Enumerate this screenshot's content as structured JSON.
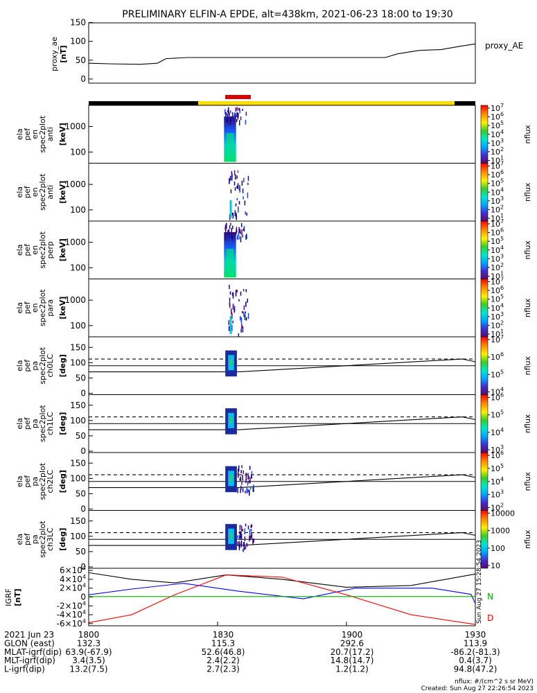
{
  "title": "PRELIMINARY ELFIN-A EPDE, alt=438km, 2021-06-23 18:00 to 19:30",
  "colors": {
    "axis": "#000000",
    "bx": "#000000",
    "by": "#0000ff",
    "bz": "#ff0000",
    "ng": "#00aa00",
    "bar_black": "#000000",
    "bar_yellow": "#ffdd00",
    "bar_red": "#dd0000"
  },
  "icons": {
    "colorbar": "rainbow-colorbar"
  },
  "top_panel": {
    "label": "proxy_ae",
    "unit": "[nT]",
    "legend": "proxy_AE",
    "yticks": [
      "0",
      "50",
      "100",
      "150"
    ]
  },
  "panels": [
    {
      "id": "ant",
      "lines": [
        "ela",
        "pef",
        "en",
        "spec2plot",
        "anti"
      ],
      "unit": "[keV]",
      "yticks": [
        "100",
        "1000"
      ],
      "colorbar_label": "nflux",
      "cb_ticks": [
        "10^1",
        "10^2",
        "10^3",
        "10^4",
        "10^5",
        "10^6",
        "10^7"
      ]
    },
    {
      "id": "anti2",
      "lines": [
        "ela",
        "pef",
        "en",
        "spec2plot",
        "anti"
      ],
      "unit": "[keV]",
      "yticks": [
        "100",
        "1000"
      ],
      "colorbar_label": "nflux",
      "cb_ticks": [
        "10^1",
        "10^2",
        "10^3",
        "10^4",
        "10^5",
        "10^6",
        "10^7"
      ]
    },
    {
      "id": "perp",
      "lines": [
        "ela",
        "pef",
        "en",
        "spec2plot",
        "perp"
      ],
      "unit": "[keV]",
      "yticks": [
        "100",
        "1000"
      ],
      "colorbar_label": "nflux",
      "cb_ticks": [
        "10^1",
        "10^2",
        "10^3",
        "10^4",
        "10^5",
        "10^6",
        "10^7"
      ]
    },
    {
      "id": "para",
      "lines": [
        "ela",
        "pef",
        "en",
        "spec2plot",
        "para"
      ],
      "unit": "[keV]",
      "yticks": [
        "100",
        "1000"
      ],
      "colorbar_label": "nflux",
      "cb_ticks": [
        "10^1",
        "10^2",
        "10^3",
        "10^4",
        "10^5",
        "10^6",
        "10^7"
      ]
    },
    {
      "id": "ch0",
      "lines": [
        "ela",
        "pef",
        "pa",
        "spec2plot",
        "ch0LC"
      ],
      "unit": "[deg]",
      "yticks": [
        "0",
        "50",
        "100",
        "150"
      ],
      "colorbar_label": "nflux",
      "cb_ticks": [
        "10^4",
        "10^5",
        "10^6",
        "10^7"
      ]
    },
    {
      "id": "ch1",
      "lines": [
        "ela",
        "pef",
        "pa",
        "spec2plot",
        "ch1LC"
      ],
      "unit": "[deg]",
      "yticks": [
        "0",
        "50",
        "100",
        "150"
      ],
      "colorbar_label": "nflux",
      "cb_ticks": [
        "10^3",
        "10^4",
        "10^5",
        "10^6"
      ]
    },
    {
      "id": "ch2",
      "lines": [
        "ela",
        "pef",
        "pa",
        "spec2plot",
        "ch2LC"
      ],
      "unit": "[deg]",
      "yticks": [
        "0",
        "50",
        "100",
        "150"
      ],
      "colorbar_label": "nflux",
      "cb_ticks": [
        "10^2",
        "10^3",
        "10^4",
        "10^5",
        "10^6"
      ]
    },
    {
      "id": "ch3",
      "lines": [
        "ela",
        "pef",
        "pa",
        "spec2plot",
        "ch3LC"
      ],
      "unit": "[deg]",
      "yticks": [
        "0",
        "50",
        "100",
        "150"
      ],
      "colorbar_label": "nflux",
      "cb_ticks": [
        "10",
        "100",
        "1000",
        "10000"
      ]
    }
  ],
  "bottom_panel": {
    "label": "IGRF",
    "unit": "[nT]",
    "yticks": [
      "-6×10^4",
      "-4×10^4",
      "-2×10^4",
      "0",
      "2×10^4",
      "4×10^4",
      "6×10^4"
    ],
    "legend_letters": [
      "N",
      "D"
    ],
    "stamp": "Sun Aug 27 15:28:54 2023"
  },
  "x_axis": {
    "ticks": [
      "1800",
      "1830",
      "1900",
      "1930"
    ]
  },
  "footer": {
    "rows": [
      {
        "label": "2021 Jun 23",
        "values": [
          "1800",
          "1830",
          "1900",
          "1930"
        ]
      },
      {
        "label": "GLON (east)",
        "values": [
          "132.3",
          "115.3",
          "292.6",
          "113.9"
        ]
      },
      {
        "label": "MLAT-igrf(dip)",
        "values": [
          "63.9(-67.9)",
          "52.6(46.8)",
          "20.7(17.2)",
          "-86.2(-81.3)"
        ]
      },
      {
        "label": "MLT-igrf(dip)",
        "values": [
          "3.4(3.5)",
          "2.4(2.2)",
          "14.8(14.7)",
          "0.4(3.7)"
        ]
      },
      {
        "label": "L-igrf(dip)",
        "values": [
          "13.2(7.5)",
          "2.7(2.3)",
          "1.2(1.2)",
          "94.8(47.2)"
        ]
      }
    ],
    "units_note": "nflux: #/(cm^2 s sr MeV)",
    "created": "Created: Sun Aug 27 22:26:54 2023"
  },
  "chart_data": {
    "type": "line",
    "title": "PRELIMINARY ELFIN-A EPDE, alt=438km, 2021-06-23 18:00 to 19:30",
    "x_range_minutes": [
      0,
      90
    ],
    "proxy_ae": {
      "x_minutes": [
        0,
        6,
        12,
        16,
        18,
        23,
        30,
        45,
        60,
        69,
        72,
        77,
        82,
        87,
        90
      ],
      "values": [
        42,
        40,
        39,
        42,
        54,
        57,
        57,
        57,
        57,
        57,
        67,
        76,
        78,
        88,
        93
      ],
      "ylim": [
        0,
        150
      ]
    },
    "spectra": [
      {
        "panel": "ant",
        "x_range_minutes": [
          31.5,
          35.5
        ],
        "energy_range_keV": [
          60,
          6000
        ]
      },
      {
        "panel": "anti2",
        "x_range_minutes": [
          32.5,
          36.5
        ],
        "energy_range_keV": [
          60,
          6000
        ]
      },
      {
        "panel": "perp",
        "x_range_minutes": [
          31.5,
          35.5
        ],
        "energy_range_keV": [
          60,
          6000
        ]
      },
      {
        "panel": "para",
        "x_range_minutes": [
          32.5,
          36.5
        ],
        "energy_range_keV": [
          60,
          6000
        ]
      }
    ],
    "pa_panels": {
      "ylim": [
        0,
        180
      ],
      "solid_lower": {
        "x_minutes": [
          0,
          35,
          87,
          90
        ],
        "values": [
          70,
          70,
          112,
          103
        ]
      },
      "solid_mid": {
        "x_minutes": [
          0,
          90
        ],
        "values": [
          90,
          90
        ]
      },
      "dashed_upper": {
        "x_minutes": [
          0,
          90
        ],
        "values": [
          112,
          112
        ]
      }
    },
    "igrf": {
      "ylim": [
        -65000,
        65000
      ],
      "series": [
        {
          "name": "",
          "color": "#000000",
          "x_minutes": [
            0,
            10,
            20,
            32,
            45,
            60,
            75,
            90
          ],
          "values": [
            55000,
            40000,
            32000,
            50000,
            40000,
            22000,
            26000,
            52000
          ]
        },
        {
          "name": "",
          "color": "#0000ff",
          "x_minutes": [
            0,
            10,
            22,
            35,
            50,
            62,
            80,
            89,
            90
          ],
          "values": [
            5000,
            18000,
            31000,
            13000,
            -4000,
            20000,
            20000,
            6000,
            -15000
          ]
        },
        {
          "name": "",
          "color": "#ff0000",
          "x_minutes": [
            0,
            10,
            20,
            32,
            45,
            60,
            75,
            90
          ],
          "values": [
            -58000,
            -40000,
            5000,
            50000,
            45000,
            5000,
            -40000,
            -62000
          ]
        },
        {
          "name": "N",
          "color": "#00aa00",
          "x_minutes": [
            0,
            30,
            60,
            88,
            90
          ],
          "values": [
            1000,
            1000,
            1000,
            1000,
            1000
          ]
        }
      ]
    }
  }
}
